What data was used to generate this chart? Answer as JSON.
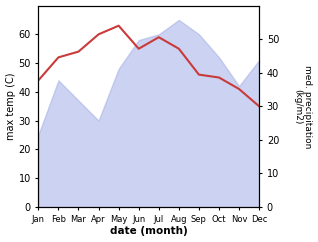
{
  "months": [
    "Jan",
    "Feb",
    "Mar",
    "Apr",
    "May",
    "Jun",
    "Jul",
    "Aug",
    "Sep",
    "Oct",
    "Nov",
    "Dec"
  ],
  "temp_line": [
    44,
    52,
    54,
    60,
    63,
    55,
    59,
    55,
    46,
    45,
    41,
    35
  ],
  "precip_fill": [
    25,
    44,
    37,
    30,
    48,
    58,
    60,
    65,
    60,
    52,
    42,
    51
  ],
  "temp_color": "#c93b3b",
  "precip_fill_color": "#aab4e8",
  "precip_fill_alpha": 0.6,
  "ylim_left": [
    0,
    70
  ],
  "ylim_right": [
    0,
    60
  ],
  "yticks_left": [
    0,
    10,
    20,
    30,
    40,
    50,
    60
  ],
  "yticks_right": [
    0,
    10,
    20,
    30,
    40,
    50
  ],
  "xlabel": "date (month)",
  "ylabel_left": "max temp (C)",
  "ylabel_right": "med. precipitation\n(kg/m2)",
  "figsize": [
    3.18,
    2.42
  ],
  "dpi": 100
}
